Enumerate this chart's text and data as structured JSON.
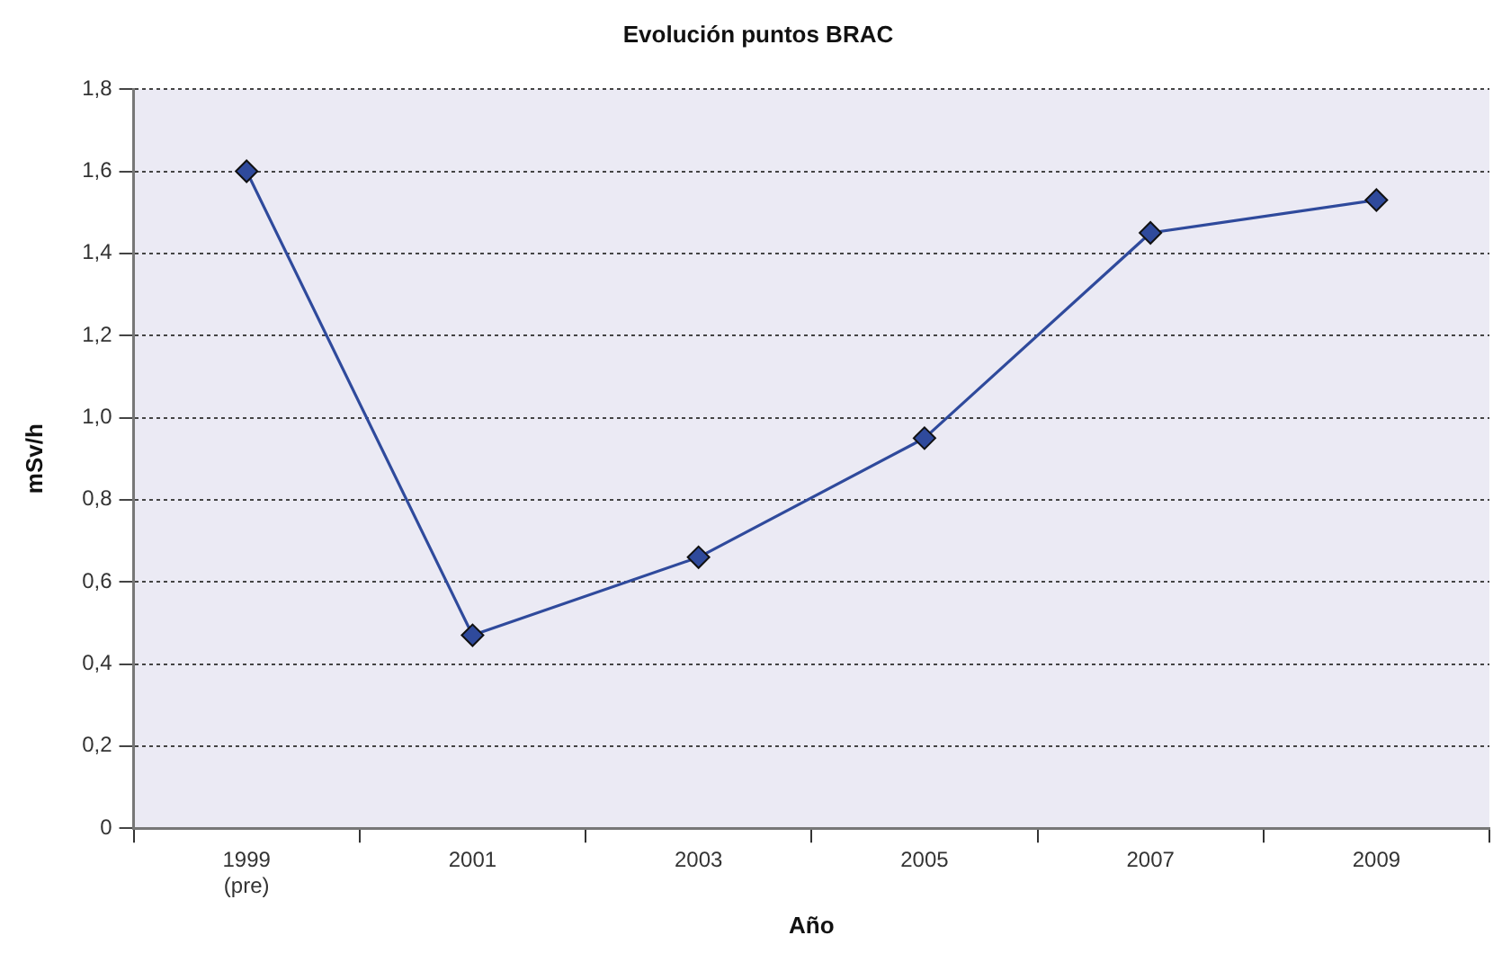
{
  "chart_data": {
    "type": "line",
    "title": "Evolución puntos BRAC",
    "xlabel": "Año",
    "ylabel": "mSv/h",
    "categories": [
      "1999\n(pre)",
      "2001",
      "2003",
      "2005",
      "2007",
      "2009"
    ],
    "series": [
      {
        "color": "#2f4a9c",
        "values": [
          1.6,
          0.47,
          0.66,
          0.95,
          1.45,
          1.53
        ]
      }
    ],
    "ylim": [
      0,
      1.8
    ],
    "yticks": [
      0,
      {
        "value": 0.2,
        "label": "0,2"
      },
      {
        "value": 0.4,
        "label": "0,4"
      },
      {
        "value": 0.6,
        "label": "0,6"
      },
      {
        "value": 0.8,
        "label": "0,8"
      },
      {
        "value": 1.0,
        "label": "1,0"
      },
      {
        "value": 1.2,
        "label": "1,2"
      },
      {
        "value": 1.4,
        "label": "1,4"
      },
      {
        "value": 1.6,
        "label": "1,6"
      },
      {
        "value": 1.8,
        "label": "1,8"
      }
    ],
    "grid": "y",
    "legend": false,
    "marker": "diamond",
    "line_style": "solid"
  }
}
